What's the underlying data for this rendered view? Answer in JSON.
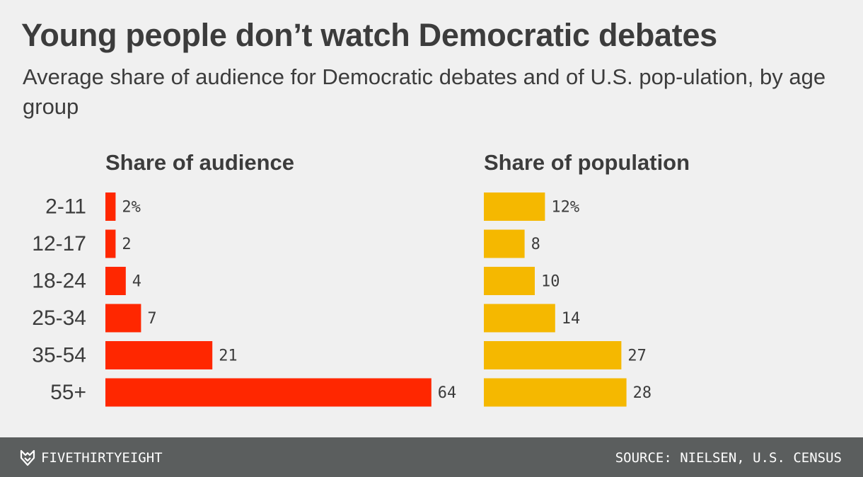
{
  "title": "Young people don’t watch Democratic debates",
  "subtitle": "Average share of audience for Democratic debates and of U.S. pop-ulation, by age group",
  "footer": {
    "brand": "FIVETHIRTYEIGHT",
    "source": "SOURCE: NIELSEN, U.S. CENSUS",
    "logo_icon": "fivethirtyeight-fox-logo-icon"
  },
  "colors": {
    "audience": "#ff2700",
    "population": "#f5b800",
    "background": "#f0f0f0",
    "footer": "#5b5e5e"
  },
  "chart_data": [
    {
      "type": "bar",
      "orientation": "horizontal",
      "title": "Share of audience",
      "categories": [
        "2-11",
        "12-17",
        "18-24",
        "25-34",
        "35-54",
        "55+"
      ],
      "values": [
        2,
        2,
        4,
        7,
        21,
        64
      ],
      "value_labels": [
        "2%",
        "2",
        "4",
        "7",
        "21",
        "64"
      ],
      "unit": "%",
      "color": "#ff2700"
    },
    {
      "type": "bar",
      "orientation": "horizontal",
      "title": "Share of population",
      "categories": [
        "2-11",
        "12-17",
        "18-24",
        "25-34",
        "35-54",
        "55+"
      ],
      "values": [
        12,
        8,
        10,
        14,
        27,
        28
      ],
      "value_labels": [
        "12%",
        "8",
        "10",
        "14",
        "27",
        "28"
      ],
      "unit": "%",
      "color": "#f5b800"
    }
  ]
}
